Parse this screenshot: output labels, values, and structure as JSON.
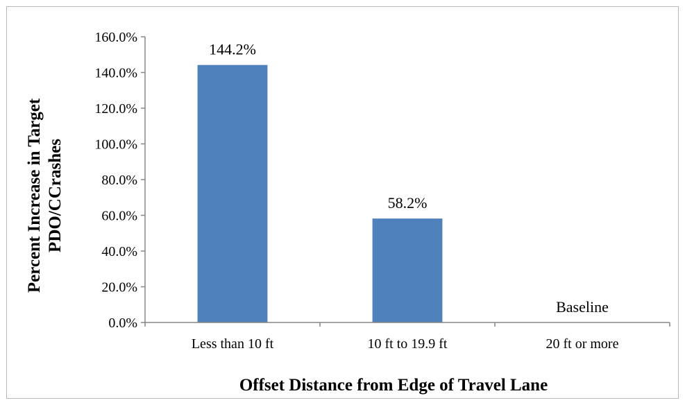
{
  "chart_data": {
    "type": "bar",
    "categories": [
      "Less than 10 ft",
      "10 ft to 19.9 ft",
      "20 ft or more"
    ],
    "values": [
      144.2,
      58.2,
      0
    ],
    "data_labels": [
      "144.2%",
      "58.2%",
      "Baseline"
    ],
    "xlabel": "Offset Distance from Edge of Travel Lane",
    "ylabel": [
      "Percent Increase in Target",
      "PDO/CCrashes"
    ],
    "ylim": [
      0,
      160
    ],
    "y_ticks": [
      0,
      20,
      40,
      60,
      80,
      100,
      120,
      140,
      160
    ],
    "y_tick_labels": [
      "0.0%",
      "20.0%",
      "40.0%",
      "60.0%",
      "80.0%",
      "100.0%",
      "120.0%",
      "140.0%",
      "160.0%"
    ],
    "bar_color": "#4f81bd",
    "grid": false,
    "legend": "none"
  }
}
